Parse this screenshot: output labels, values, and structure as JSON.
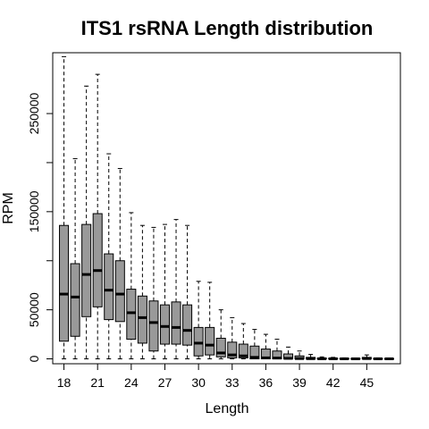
{
  "chart_data": {
    "type": "boxplot",
    "title": "ITS1 rsRNA Length distribution",
    "xlabel": "Length",
    "ylabel": "RPM",
    "xlim": [
      17,
      48
    ],
    "ylim": [
      -5000,
      312000
    ],
    "x_tick_labels": [
      "18",
      "21",
      "24",
      "27",
      "30",
      "33",
      "36",
      "39",
      "42",
      "45"
    ],
    "y_tick_labels": [
      "0",
      "50000",
      "150000",
      "250000"
    ],
    "grid": false,
    "legend": "none",
    "colors": {
      "box_fill": "#999999",
      "stroke": "#000000"
    },
    "boxes": [
      {
        "x": 18,
        "min": 0,
        "q1": 18000,
        "median": 66000,
        "q3": 136000,
        "max": 308000
      },
      {
        "x": 19,
        "min": 0,
        "q1": 23000,
        "median": 63000,
        "q3": 97000,
        "max": 204000
      },
      {
        "x": 20,
        "min": 0,
        "q1": 43000,
        "median": 86000,
        "q3": 137000,
        "max": 278000
      },
      {
        "x": 21,
        "min": 0,
        "q1": 53000,
        "median": 90000,
        "q3": 148000,
        "max": 290000
      },
      {
        "x": 22,
        "min": 0,
        "q1": 40000,
        "median": 70000,
        "q3": 107000,
        "max": 209000
      },
      {
        "x": 23,
        "min": 0,
        "q1": 38000,
        "median": 66000,
        "q3": 100000,
        "max": 194000
      },
      {
        "x": 24,
        "min": 0,
        "q1": 20000,
        "median": 47000,
        "q3": 71000,
        "max": 149000
      },
      {
        "x": 25,
        "min": 0,
        "q1": 16000,
        "median": 42000,
        "q3": 64000,
        "max": 136000
      },
      {
        "x": 26,
        "min": 0,
        "q1": 8000,
        "median": 37000,
        "q3": 59000,
        "max": 134000
      },
      {
        "x": 27,
        "min": 0,
        "q1": 15000,
        "median": 33000,
        "q3": 55000,
        "max": 137000
      },
      {
        "x": 28,
        "min": 0,
        "q1": 15000,
        "median": 32000,
        "q3": 58000,
        "max": 142000
      },
      {
        "x": 29,
        "min": 0,
        "q1": 14000,
        "median": 29000,
        "q3": 55000,
        "max": 136000
      },
      {
        "x": 30,
        "min": 0,
        "q1": 3000,
        "median": 16000,
        "q3": 32000,
        "max": 79000
      },
      {
        "x": 31,
        "min": 0,
        "q1": 4000,
        "median": 14000,
        "q3": 32000,
        "max": 78000
      },
      {
        "x": 32,
        "min": 0,
        "q1": 2000,
        "median": 6000,
        "q3": 21000,
        "max": 50000
      },
      {
        "x": 33,
        "min": 0,
        "q1": 1000,
        "median": 4000,
        "q3": 17000,
        "max": 42000
      },
      {
        "x": 34,
        "min": 0,
        "q1": 1000,
        "median": 3000,
        "q3": 15000,
        "max": 36000
      },
      {
        "x": 35,
        "min": 0,
        "q1": 0,
        "median": 1500,
        "q3": 13000,
        "max": 30000
      },
      {
        "x": 36,
        "min": 0,
        "q1": 0,
        "median": 1000,
        "q3": 10000,
        "max": 25000
      },
      {
        "x": 37,
        "min": 0,
        "q1": 0,
        "median": 800,
        "q3": 8000,
        "max": 20000
      },
      {
        "x": 38,
        "min": 0,
        "q1": 0,
        "median": 500,
        "q3": 5000,
        "max": 12000
      },
      {
        "x": 39,
        "min": 0,
        "q1": 0,
        "median": 300,
        "q3": 3000,
        "max": 8000
      },
      {
        "x": 40,
        "min": 0,
        "q1": 0,
        "median": 200,
        "q3": 1500,
        "max": 4500
      },
      {
        "x": 41,
        "min": 0,
        "q1": 0,
        "median": 100,
        "q3": 800,
        "max": 2000
      },
      {
        "x": 42,
        "min": 0,
        "q1": 0,
        "median": 100,
        "q3": 500,
        "max": 1500
      },
      {
        "x": 43,
        "min": 0,
        "q1": 0,
        "median": 50,
        "q3": 400,
        "max": 1000
      },
      {
        "x": 44,
        "min": 0,
        "q1": 0,
        "median": 50,
        "q3": 300,
        "max": 800
      },
      {
        "x": 45,
        "min": 0,
        "q1": 0,
        "median": 300,
        "q3": 1500,
        "max": 4000
      },
      {
        "x": 46,
        "min": 0,
        "q1": 0,
        "median": 50,
        "q3": 300,
        "max": 1000
      },
      {
        "x": 47,
        "min": 0,
        "q1": 0,
        "median": 50,
        "q3": 200,
        "max": 800
      }
    ]
  }
}
